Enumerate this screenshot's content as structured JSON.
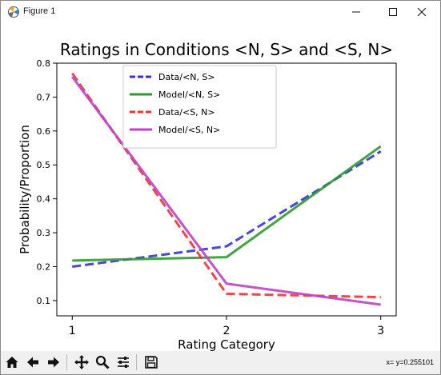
{
  "window": {
    "title": "Figure 1"
  },
  "toolbar": {
    "buttons": [
      "home-icon",
      "back-arrow-icon",
      "forward-arrow-icon",
      "pan-icon",
      "zoom-icon",
      "subplots-icon",
      "save-icon"
    ],
    "status_text": "x= y=0.255101"
  },
  "chart_data": {
    "type": "line",
    "title": "Ratings in Conditions <N, S> and <S, N>",
    "xlabel": "Rating Category",
    "ylabel": "Probability/Proportion",
    "x": [
      1,
      2,
      3
    ],
    "xlim": [
      0.9,
      3.1
    ],
    "ylim": [
      0.055,
      0.8
    ],
    "xticks": [
      "1",
      "2",
      "3"
    ],
    "yticks": [
      "0.1",
      "0.2",
      "0.3",
      "0.4",
      "0.5",
      "0.6",
      "0.7",
      "0.8"
    ],
    "legend_position": "top-center",
    "series": [
      {
        "name": "Data/<N, S>",
        "values": [
          0.2,
          0.26,
          0.54
        ],
        "color": "#3333dd",
        "dash": true
      },
      {
        "name": "Model/<N, S>",
        "values": [
          0.218,
          0.228,
          0.555
        ],
        "color": "#2e9a2e",
        "dash": false
      },
      {
        "name": "Data/<S, N>",
        "values": [
          0.77,
          0.12,
          0.11
        ],
        "color": "#ee3333",
        "dash": true
      },
      {
        "name": "Model/<S, N>",
        "values": [
          0.76,
          0.15,
          0.088
        ],
        "color": "#c040c8",
        "dash": false
      }
    ]
  }
}
